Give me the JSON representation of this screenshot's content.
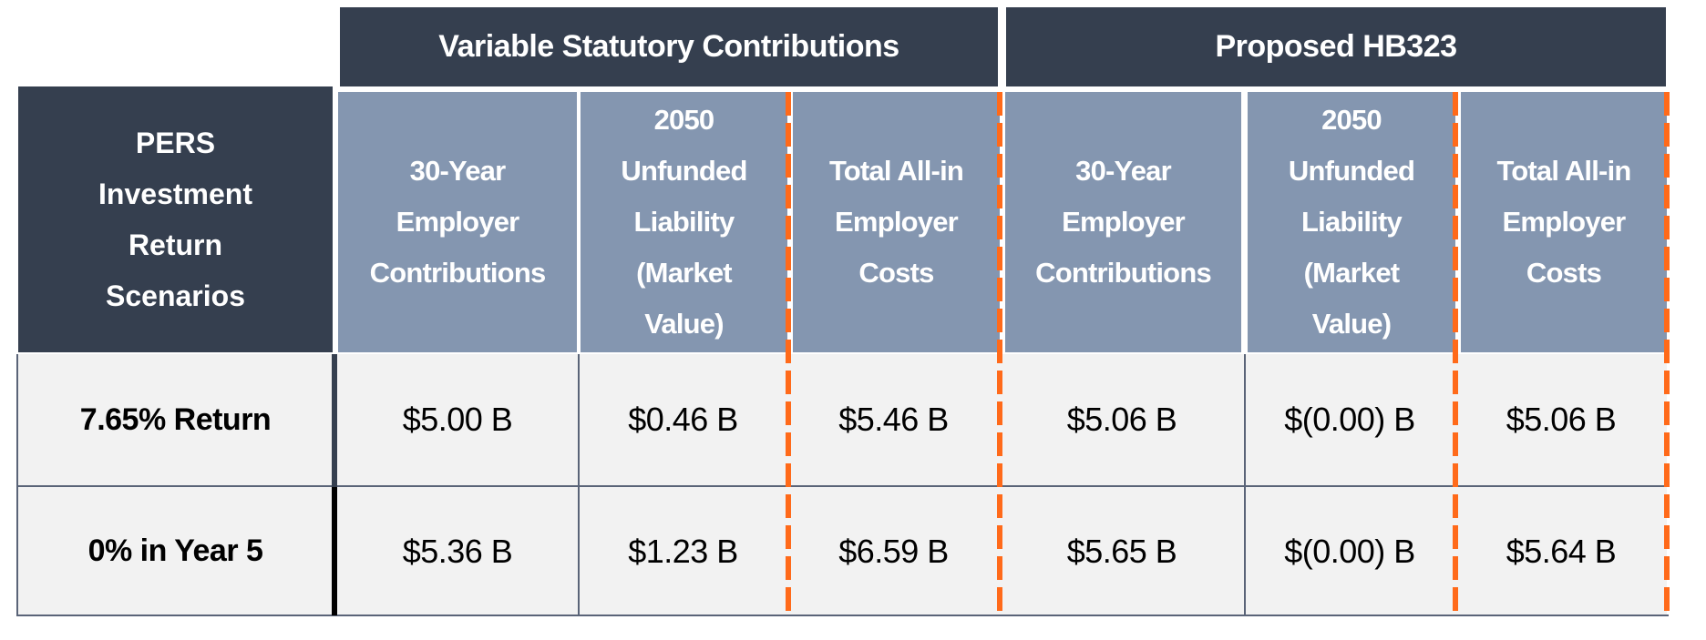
{
  "group_headers": [
    "Variable Statutory Contributions",
    "Proposed HB323"
  ],
  "corner_header": "PERS\nInvestment\nReturn\nScenarios",
  "column_headers": [
    "30-Year\nEmployer\nContributions",
    "2050\nUnfunded\nLiability\n(Market\nValue)",
    "Total All-in\nEmployer\nCosts",
    "30-Year\nEmployer\nContributions",
    "2050\nUnfunded\nLiability\n(Market\nValue)",
    "Total All-in\nEmployer\nCosts"
  ],
  "rows": [
    {
      "label": "7.65% Return",
      "values": [
        "$5.00 B",
        "$0.46 B",
        "$5.46 B",
        "$5.06 B",
        "$(0.00) B",
        "$5.06 B"
      ]
    },
    {
      "label": "0% in Year 5",
      "values": [
        "$5.36 B",
        "$1.23 B",
        "$6.59 B",
        "$5.65 B",
        "$(0.00) B",
        "$5.64 B"
      ]
    }
  ],
  "colors": {
    "header_dark": "#353f4f",
    "header_light": "#8496b0",
    "cell_bg": "#f2f2f2",
    "highlight_dash": "#ff6a1a"
  }
}
